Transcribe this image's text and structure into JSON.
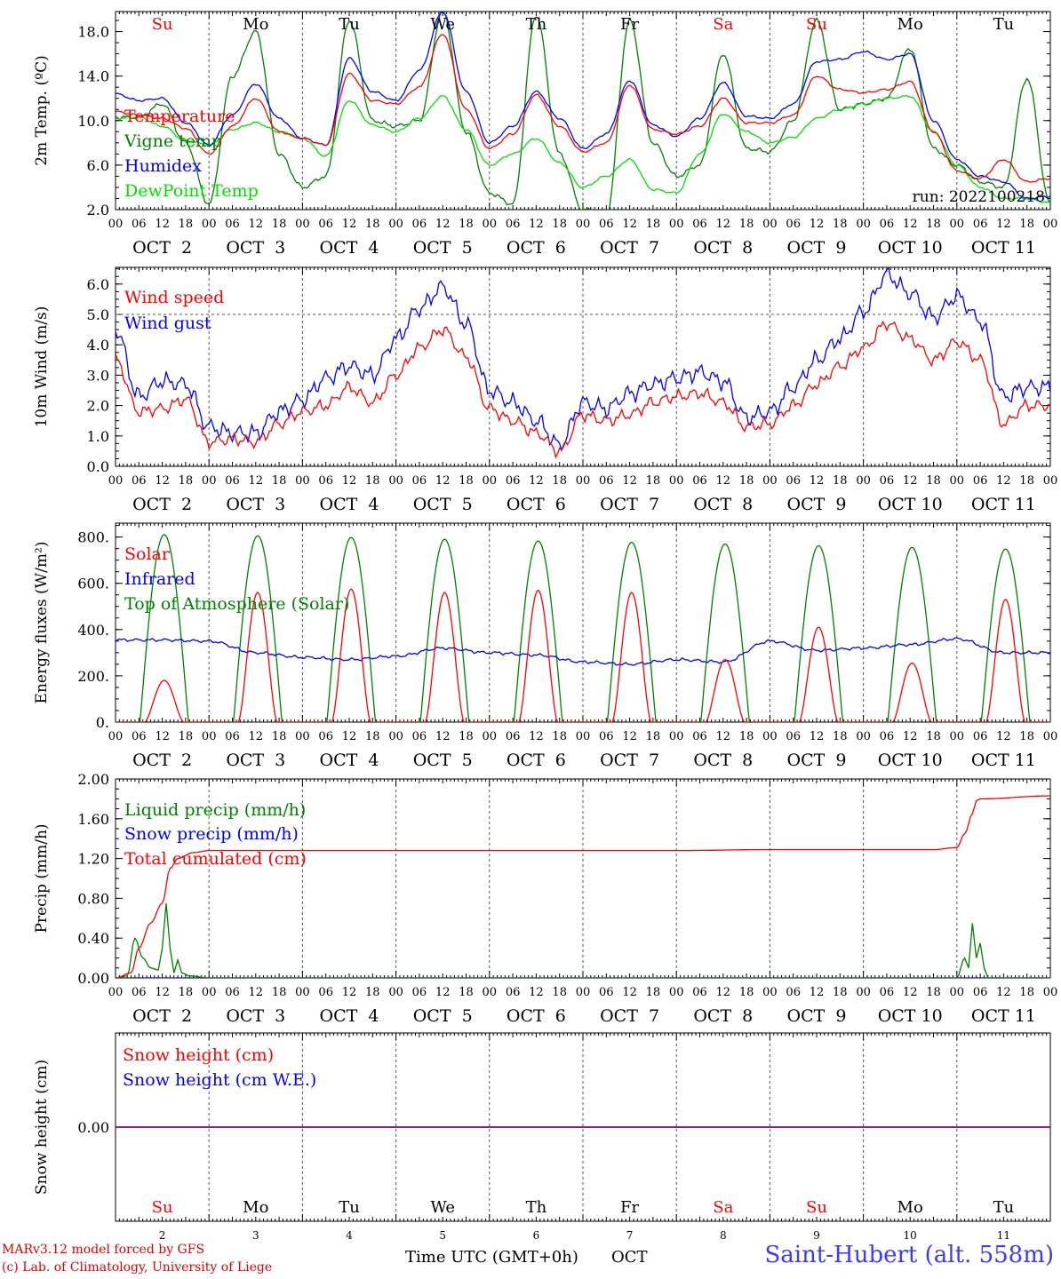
{
  "footer": {
    "credit_line1": "MARv3.12 model forced by GFS",
    "credit_line2": "(c) Lab. of Climatology, University of Liege",
    "x_title": "Time UTC (GMT+0h)",
    "x_unit": "OCT",
    "station": "Saint-Hubert (alt. 558m)"
  },
  "colors": {
    "red": "#ff0000",
    "green": "#008000",
    "blue": "#0000ff",
    "lime": "#00e000",
    "purple": "#800080",
    "grid": "#555555"
  },
  "axis": {
    "hour_ticks": [
      "00",
      "06",
      "12",
      "18",
      "00",
      "06",
      "12",
      "18",
      "00",
      "06",
      "12",
      "18",
      "00",
      "06",
      "12",
      "18",
      "00",
      "06",
      "12",
      "18",
      "00",
      "06",
      "12",
      "18",
      "00",
      "06",
      "12",
      "18",
      "00",
      "06",
      "12",
      "18",
      "00",
      "06",
      "12",
      "18",
      "00",
      "06",
      "12",
      "18",
      "00"
    ],
    "day_labels": [
      "OCT  2",
      "OCT  3",
      "OCT  4",
      "OCT  5",
      "OCT  6",
      "OCT  7",
      "OCT  8",
      "OCT  9",
      "OCT 10",
      "OCT 11"
    ],
    "weekdays": [
      "Su",
      "Mo",
      "Tu",
      "We",
      "Th",
      "Fr",
      "Sa",
      "Su",
      "Mo",
      "Tu"
    ],
    "weekday_colors": [
      "#ff0000",
      "#000000",
      "#000000",
      "#000000",
      "#000000",
      "#000000",
      "#ff0000",
      "#ff0000",
      "#000000",
      "#000000"
    ],
    "bottom_day_numbers": [
      "2",
      "3",
      "4",
      "5",
      "6",
      "7",
      "8",
      "9",
      "10",
      "11"
    ]
  },
  "chart_data": [
    {
      "type": "line",
      "id": "temp",
      "ylabel": "2m Temp. (ºC)",
      "ylim": [
        2,
        19.8
      ],
      "yticks": [
        2.0,
        6.0,
        10.0,
        14.0,
        18.0
      ],
      "ytick_labels": [
        "2.0",
        "6.0",
        "10.0",
        "14.0",
        "18.0"
      ],
      "annotation": "run: 2022100218",
      "show_weekdays": true,
      "x_hours": [
        0,
        6,
        12,
        18,
        24,
        30,
        36,
        42,
        48,
        54,
        60,
        66,
        72,
        78,
        84,
        90,
        96,
        102,
        108,
        114,
        120,
        126,
        132,
        138,
        144,
        150,
        156,
        162,
        168,
        174,
        180,
        186,
        192,
        198,
        204,
        210,
        216,
        222,
        228,
        234,
        240
      ],
      "series": [
        {
          "name": "Temperature",
          "color": "#ff0000",
          "values": [
            10.8,
            10.5,
            10.2,
            9.3,
            7.0,
            9.5,
            12.0,
            9.0,
            8.4,
            7.8,
            14.2,
            11.8,
            11.5,
            13.0,
            17.8,
            11.0,
            7.5,
            8.8,
            12.3,
            9.5,
            7.2,
            8.0,
            13.2,
            9.2,
            8.8,
            9.5,
            12.0,
            9.8,
            9.8,
            10.5,
            14.0,
            12.8,
            12.5,
            12.8,
            13.5,
            9.0,
            5.5,
            4.8,
            6.5,
            4.5,
            4.8
          ]
        },
        {
          "name": "Vigne temp",
          "color": "#008000",
          "values": [
            10.3,
            10.3,
            11.5,
            8.0,
            2.5,
            14.0,
            18.0,
            7.0,
            4.0,
            5.0,
            19.0,
            10.0,
            9.5,
            10.0,
            19.8,
            9.0,
            3.5,
            2.5,
            19.5,
            7.0,
            2.0,
            1.5,
            19.0,
            8.0,
            5.0,
            6.0,
            16.0,
            7.5,
            7.2,
            10.0,
            19.0,
            11.0,
            11.5,
            12.0,
            16.5,
            7.5,
            6.0,
            4.5,
            4.0,
            13.8,
            2.5
          ]
        },
        {
          "name": "Humidex",
          "color": "#0000ff",
          "values": [
            12.4,
            11.8,
            12.0,
            9.8,
            7.8,
            10.5,
            13.3,
            10.2,
            8.4,
            7.8,
            15.6,
            12.6,
            11.8,
            14.5,
            19.8,
            12.6,
            8.0,
            9.5,
            12.6,
            10.2,
            7.5,
            8.8,
            13.6,
            9.6,
            8.6,
            10.2,
            13.4,
            10.4,
            10.2,
            11.5,
            15.3,
            15.5,
            16.2,
            15.5,
            16.0,
            10.0,
            6.5,
            5.0,
            4.5,
            3.0,
            3.2
          ]
        },
        {
          "name": "DewPoint Temp",
          "color": "#00e000",
          "values": [
            10.2,
            10.3,
            9.5,
            8.2,
            7.8,
            9.2,
            9.8,
            9.0,
            8.4,
            6.8,
            11.8,
            9.6,
            9.0,
            10.2,
            12.2,
            9.2,
            6.0,
            7.0,
            8.4,
            6.2,
            4.0,
            5.0,
            6.5,
            3.8,
            3.5,
            7.0,
            10.6,
            9.0,
            8.0,
            8.5,
            10.2,
            11.0,
            11.5,
            12.0,
            12.2,
            9.0,
            6.0,
            4.0,
            3.0,
            3.0,
            2.6
          ]
        }
      ]
    },
    {
      "type": "line",
      "id": "wind",
      "ylabel": "10m Wind (m/s)",
      "ylim": [
        0,
        6.55
      ],
      "yticks": [
        0,
        1,
        2,
        3,
        4,
        5,
        6
      ],
      "ytick_labels": [
        "0.0",
        "1.0",
        "2.0",
        "3.0",
        "4.0",
        "5.0",
        "6.0"
      ],
      "reference_line": 5.0,
      "x_hours": [
        0,
        6,
        12,
        18,
        24,
        30,
        36,
        42,
        48,
        54,
        60,
        66,
        72,
        78,
        84,
        90,
        96,
        102,
        108,
        114,
        120,
        126,
        132,
        138,
        144,
        150,
        156,
        162,
        168,
        174,
        180,
        186,
        192,
        198,
        204,
        210,
        216,
        222,
        228,
        234,
        240
      ],
      "series": [
        {
          "name": "Wind speed",
          "color": "#ff0000",
          "values": [
            3.5,
            1.8,
            1.9,
            2.2,
            0.8,
            0.9,
            0.8,
            1.4,
            1.8,
            2.0,
            2.6,
            2.1,
            3.0,
            3.9,
            4.5,
            3.6,
            1.9,
            1.5,
            1.1,
            0.5,
            1.7,
            1.5,
            1.7,
            2.1,
            2.3,
            2.4,
            2.1,
            1.3,
            1.4,
            2.0,
            2.7,
            3.3,
            3.9,
            4.7,
            4.2,
            3.5,
            4.1,
            3.5,
            1.4,
            2.0,
            2.0
          ]
        },
        {
          "name": "Wind gust",
          "color": "#0000ff",
          "values": [
            4.5,
            2.3,
            2.8,
            2.7,
            1.3,
            1.1,
            1.1,
            1.8,
            2.2,
            2.9,
            3.3,
            3.0,
            4.2,
            5.2,
            5.9,
            4.7,
            2.5,
            2.1,
            1.5,
            0.7,
            2.1,
            1.9,
            2.4,
            2.7,
            2.9,
            3.1,
            2.8,
            1.6,
            1.8,
            2.6,
            3.5,
            4.2,
            5.1,
            6.3,
            5.7,
            4.9,
            5.6,
            4.8,
            2.3,
            2.6,
            2.6
          ]
        }
      ]
    },
    {
      "type": "line",
      "id": "energy",
      "ylabel": "Energy fluxes (W/m²)",
      "ylim": [
        0,
        860
      ],
      "yticks": [
        0,
        200,
        400,
        600,
        800
      ],
      "ytick_labels": [
        "0.",
        "200.",
        "400.",
        "600.",
        "800."
      ],
      "series_style": "diurnal",
      "series": [
        {
          "name": "Solar",
          "color": "#ff0000",
          "day_peaks": [
            180,
            560,
            575,
            560,
            570,
            560,
            270,
            410,
            255,
            530
          ]
        },
        {
          "name": "Infrared",
          "color": "#0000ff",
          "x_hours": [
            0,
            12,
            24,
            36,
            48,
            60,
            72,
            84,
            96,
            108,
            120,
            132,
            144,
            156,
            168,
            180,
            192,
            204,
            216,
            228,
            240
          ],
          "values": [
            355,
            355,
            350,
            300,
            280,
            270,
            285,
            320,
            300,
            290,
            260,
            250,
            270,
            260,
            350,
            310,
            320,
            335,
            360,
            300,
            300
          ]
        },
        {
          "name": "Top of Atmosphere (Solar)",
          "color": "#008000",
          "day_peaks": [
            810,
            805,
            798,
            790,
            783,
            777,
            770,
            762,
            755,
            748
          ]
        }
      ]
    },
    {
      "type": "line",
      "id": "precip",
      "ylabel": "Precip (mm/h)",
      "ylim": [
        0,
        2.0
      ],
      "yticks": [
        0,
        0.4,
        0.8,
        1.2,
        1.6,
        2.0
      ],
      "ytick_labels": [
        "0.00",
        "0.40",
        "0.80",
        "1.20",
        "1.60",
        "2.00"
      ],
      "series": [
        {
          "name": "Liquid precip (mm/h)",
          "color": "#008000",
          "x_hours": [
            0,
            3,
            5,
            7,
            9,
            11,
            12,
            13,
            14,
            15,
            16,
            17,
            19,
            24,
            216,
            218,
            219,
            220,
            221,
            222,
            223,
            224,
            226,
            240
          ],
          "values": [
            0,
            0.02,
            0.4,
            0.2,
            0.1,
            0.08,
            0.3,
            0.75,
            0.3,
            0.05,
            0.18,
            0.05,
            0.02,
            0,
            0,
            0.2,
            0.1,
            0.55,
            0.2,
            0.35,
            0.1,
            0,
            0,
            0
          ]
        },
        {
          "name": "Snow precip (mm/h)",
          "color": "#0000ff",
          "x_hours": [
            0,
            240
          ],
          "values": [
            0,
            0
          ]
        },
        {
          "name": "Total cumulated (cm)",
          "color": "#ff0000",
          "x_hours": [
            0,
            4,
            6,
            9,
            12,
            14,
            16,
            20,
            24,
            36,
            96,
            144,
            168,
            210,
            216,
            218,
            220,
            221,
            222,
            240
          ],
          "values": [
            0,
            0.05,
            0.3,
            0.55,
            0.75,
            1.1,
            1.2,
            1.26,
            1.28,
            1.28,
            1.28,
            1.28,
            1.29,
            1.29,
            1.31,
            1.45,
            1.65,
            1.78,
            1.8,
            1.83
          ]
        }
      ]
    },
    {
      "type": "line",
      "id": "snow",
      "ylabel": "Snow height (cm)",
      "ylim": [
        -1,
        1
      ],
      "yticks": [
        0
      ],
      "ytick_labels": [
        "0.00"
      ],
      "show_weekdays_bottom": true,
      "series": [
        {
          "name": "Snow height (cm)",
          "color": "#ff0000",
          "x_hours": [
            0,
            240
          ],
          "values": [
            0,
            0
          ]
        },
        {
          "name": "Snow height (cm W.E.)",
          "color": "#0000ff",
          "x_hours": [
            0,
            240
          ],
          "values": [
            0,
            0
          ]
        }
      ]
    }
  ]
}
